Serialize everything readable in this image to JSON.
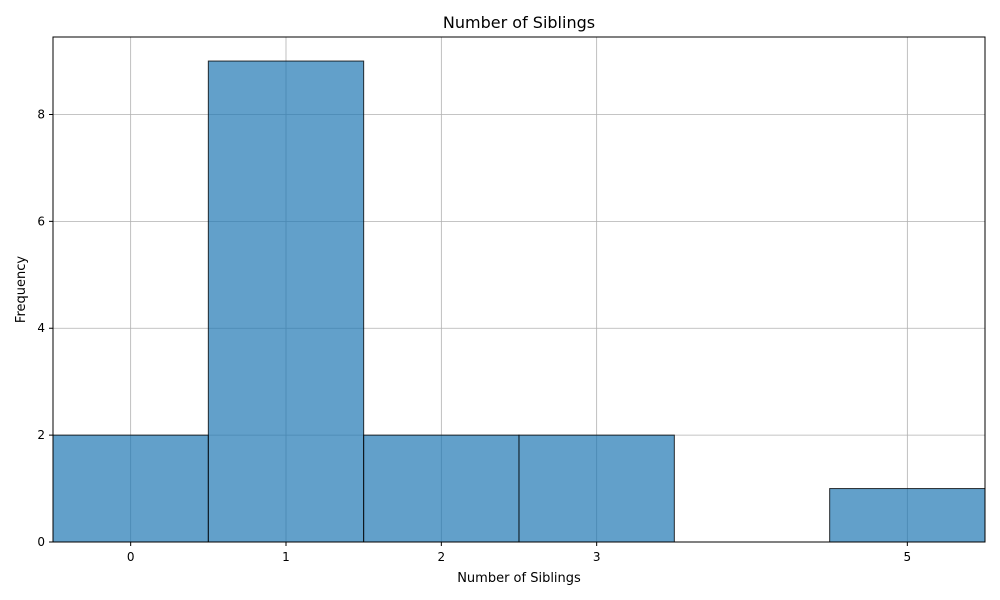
{
  "chart_data": {
    "type": "bar",
    "title": "Number of Siblings",
    "xlabel": "Number of Siblings",
    "ylabel": "Frequency",
    "bins": [
      {
        "start": -0.5,
        "end": 0.5,
        "count": 2
      },
      {
        "start": 0.5,
        "end": 1.5,
        "count": 9
      },
      {
        "start": 1.5,
        "end": 2.5,
        "count": 2
      },
      {
        "start": 2.5,
        "end": 3.5,
        "count": 2
      },
      {
        "start": 3.5,
        "end": 4.5,
        "count": 0
      },
      {
        "start": 4.5,
        "end": 5.5,
        "count": 1
      }
    ],
    "xticks": [
      0,
      1,
      2,
      3,
      5
    ],
    "yticks": [
      0,
      2,
      4,
      6,
      8
    ],
    "xlim": [
      -0.5,
      5.5
    ],
    "ylim": [
      0,
      9.45
    ],
    "grid": true,
    "colors": {
      "bar_fill": "#1f77b4",
      "bar_opacity": 0.7,
      "bar_edge": "#000000",
      "grid": "#b0b0b0",
      "axis": "#000000"
    }
  }
}
